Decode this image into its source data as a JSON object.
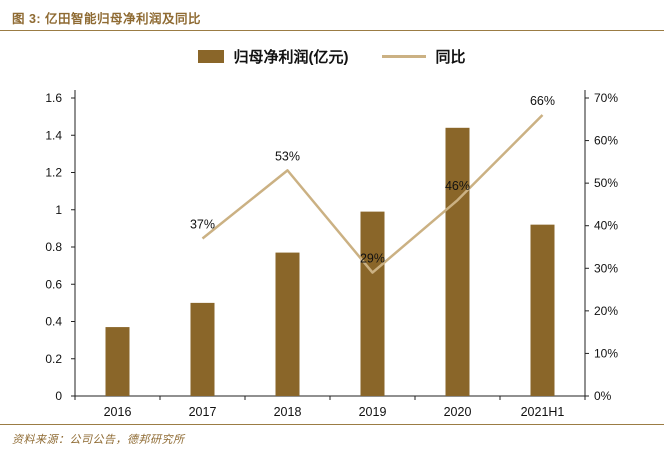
{
  "header": {
    "title": "图 3: 亿田智能归母净利润及同比"
  },
  "legend": {
    "bar_label": "归母净利润(亿元)",
    "line_label": "同比"
  },
  "footer": {
    "source": "资料来源：公司公告，德邦研究所"
  },
  "colors": {
    "bar": "#8a6629",
    "line": "#cbb183",
    "accent": "#9b7c44",
    "title": "#8f6b33",
    "axis_line": "#222222",
    "axis_text": "#111111"
  },
  "chart_data": {
    "type": "bar",
    "subtype": "combo-bar-line",
    "title": "亿田智能归母净利润及同比",
    "categories": [
      "2016",
      "2017",
      "2018",
      "2019",
      "2020",
      "2021H1"
    ],
    "series": [
      {
        "name": "归母净利润(亿元)",
        "type": "bar",
        "axis": "left",
        "values": [
          0.37,
          0.5,
          0.77,
          0.99,
          1.44,
          0.92
        ]
      },
      {
        "name": "同比",
        "type": "line",
        "axis": "right",
        "values": [
          null,
          37,
          53,
          29,
          46,
          66
        ],
        "labels": [
          "",
          "37%",
          "53%",
          "29%",
          "46%",
          "66%"
        ]
      }
    ],
    "left_axis": {
      "min": 0,
      "max": 1.6,
      "ticks": [
        "0",
        "0.2",
        "0.4",
        "0.6",
        "0.8",
        "1",
        "1.2",
        "1.4",
        "1.6"
      ]
    },
    "right_axis": {
      "min": 0,
      "max": 70,
      "ticks": [
        "0%",
        "10%",
        "20%",
        "30%",
        "40%",
        "50%",
        "60%",
        "70%"
      ],
      "unit": "%"
    },
    "grid": false,
    "legend_position": "top"
  }
}
